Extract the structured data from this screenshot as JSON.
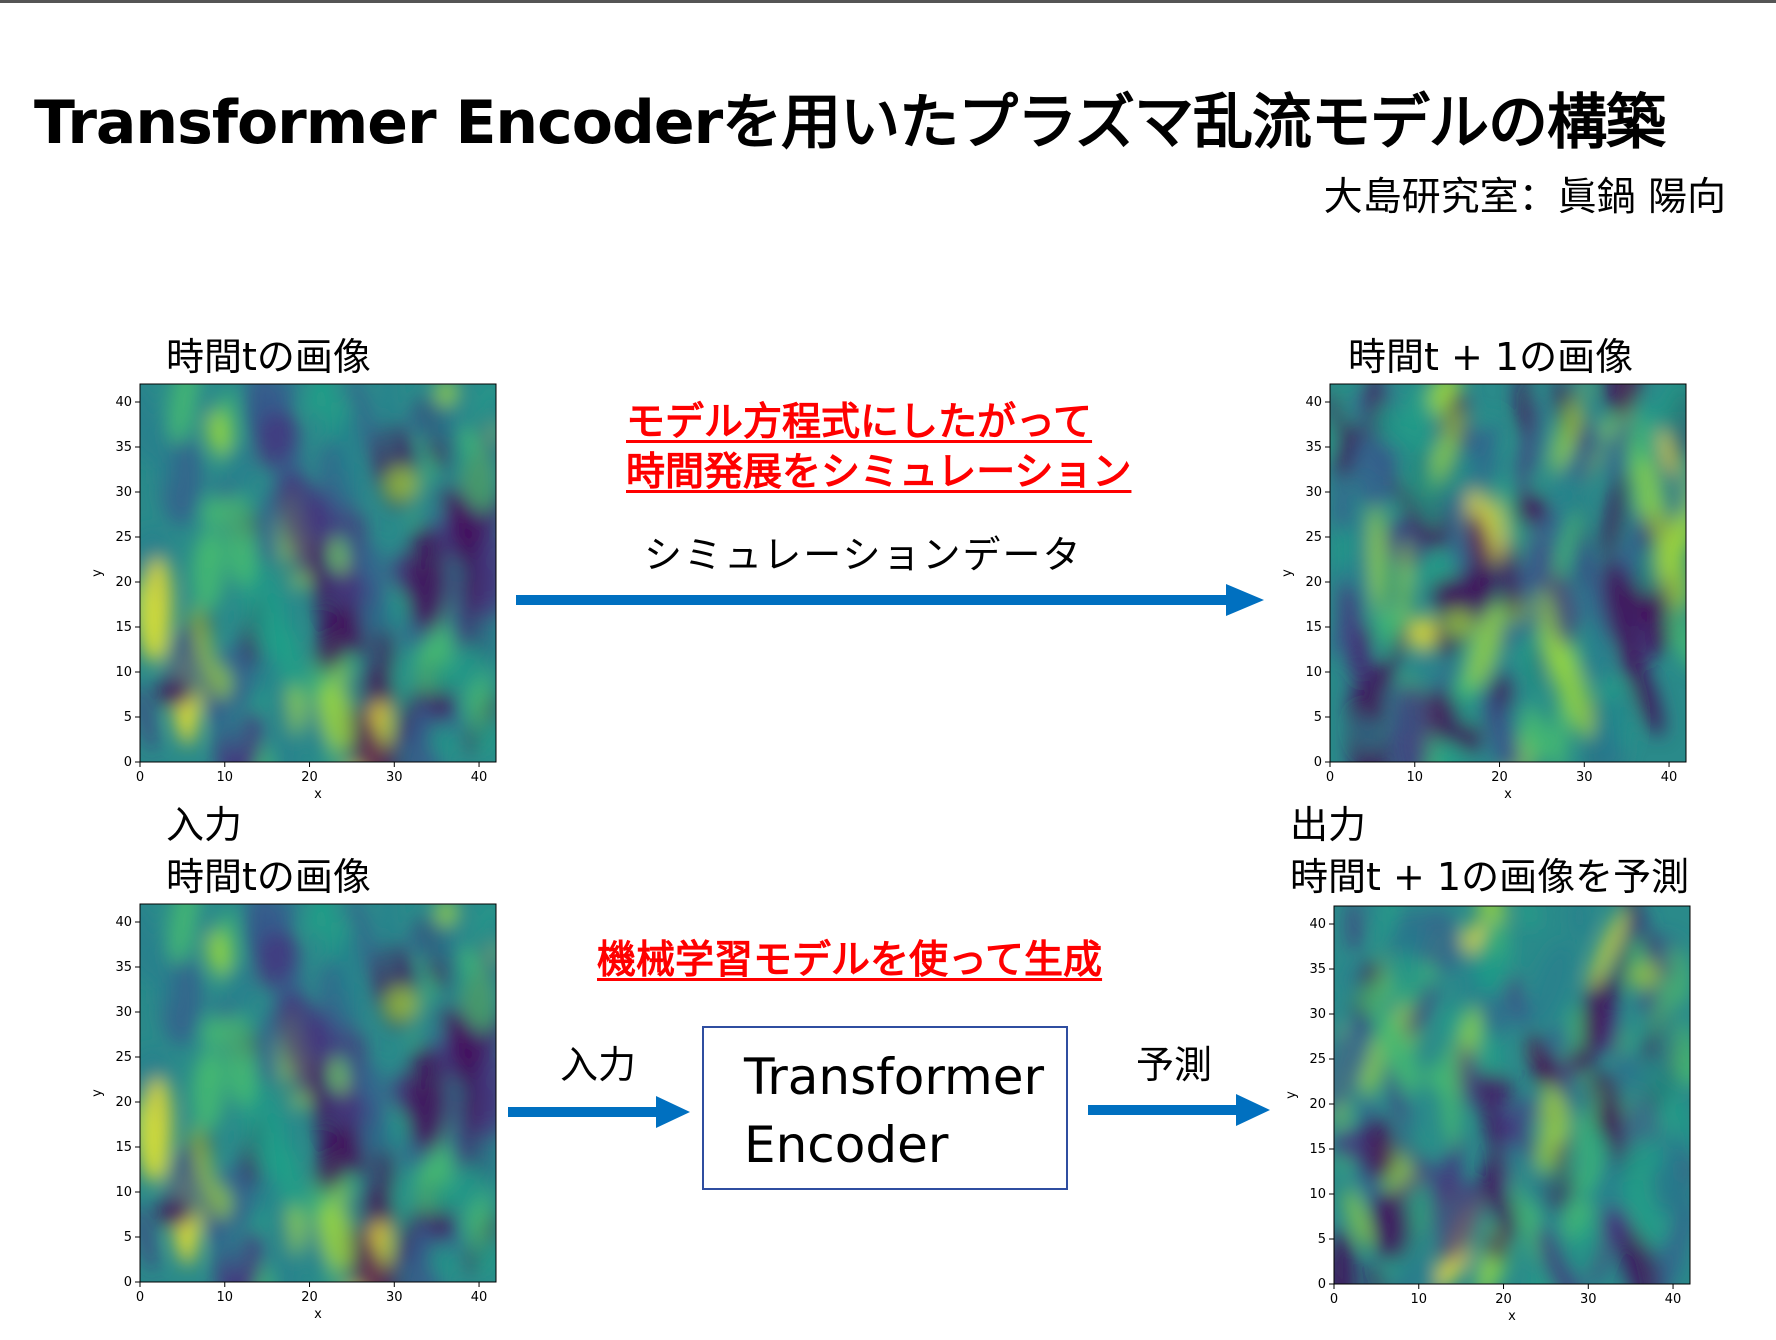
{
  "title": "Transformer Encoderを用いたプラズマ乱流モデルの構築",
  "author": "大島研究室：眞鍋 陽向",
  "top_left_label": "時間tの画像",
  "top_right_label": "時間t + 1の画像",
  "red_text_line1": "モデル方程式にしたがって",
  "red_text_line2": "時間発展をシミュレーション",
  "simulation_label": "シミュレーションデータ",
  "bottom_left_label1": "入力",
  "bottom_left_label2": "時間tの画像",
  "bottom_right_label1": "出力",
  "bottom_right_label2": "時間t + 1の画像を予測",
  "ml_red_text": "機械学習モデルを使って生成",
  "input_arrow_label": "入力",
  "predict_arrow_label": "予測",
  "encoder_line1": "Transformer",
  "encoder_line2": "Encoder",
  "colors": {
    "arrow": "#0070c0",
    "red": "#ff0000",
    "box_border": "#2f4da0"
  },
  "chart_data": [
    {
      "type": "heatmap",
      "colormap": "viridis",
      "xlabel": "x",
      "ylabel": "y",
      "xlim": [
        0,
        42
      ],
      "ylim": [
        0,
        42
      ],
      "xticks": [
        "0",
        "10",
        "20",
        "30",
        "40"
      ],
      "yticks": [
        "0",
        "5",
        "10",
        "15",
        "20",
        "25",
        "30",
        "35",
        "40"
      ]
    },
    {
      "type": "heatmap",
      "colormap": "viridis",
      "xlabel": "x",
      "ylabel": "y",
      "xlim": [
        0,
        42
      ],
      "ylim": [
        0,
        42
      ],
      "xticks": [
        "0",
        "10",
        "20",
        "30",
        "40"
      ],
      "yticks": [
        "0",
        "5",
        "10",
        "15",
        "20",
        "25",
        "30",
        "35",
        "40"
      ]
    },
    {
      "type": "heatmap",
      "colormap": "viridis",
      "xlabel": "x",
      "ylabel": "y",
      "xlim": [
        0,
        42
      ],
      "ylim": [
        0,
        42
      ],
      "xticks": [
        "0",
        "10",
        "20",
        "30",
        "40"
      ],
      "yticks": [
        "0",
        "5",
        "10",
        "15",
        "20",
        "25",
        "30",
        "35",
        "40"
      ]
    },
    {
      "type": "heatmap",
      "colormap": "viridis",
      "xlabel": "x",
      "ylabel": "y",
      "xlim": [
        0,
        42
      ],
      "ylim": [
        0,
        42
      ],
      "xticks": [
        "0",
        "10",
        "20",
        "30",
        "40"
      ],
      "yticks": [
        "0",
        "5",
        "10",
        "15",
        "20",
        "25",
        "30",
        "35",
        "40"
      ]
    }
  ]
}
